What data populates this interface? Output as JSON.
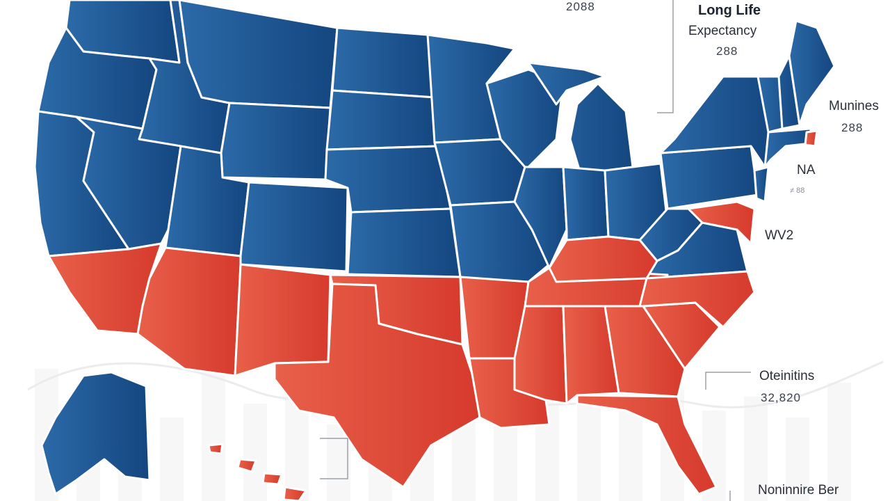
{
  "colors": {
    "high": "#1f5a96",
    "low": "#e24a38",
    "border": "#ffffff",
    "legend_bars": "#f1f1f1"
  },
  "labels": {
    "top_number": "2088",
    "title_line1": "Long Life",
    "title_line2": "Expectancy",
    "title_value": "288",
    "northeast_name": "Munines",
    "northeast_value": "288",
    "na_label": "NA",
    "small_note": "≠ 88",
    "wv_label": "WV2",
    "southeast_name": "Oteinitins",
    "southeast_value": "32,820",
    "bottom_label": "Noninnire Ber"
  },
  "regions": {
    "high_expectancy": [
      "Washington",
      "Oregon",
      "Idaho",
      "Montana",
      "Wyoming",
      "Nevada",
      "Utah",
      "Colorado",
      "North Dakota",
      "South Dakota",
      "Nebraska",
      "Kansas",
      "Minnesota",
      "Iowa",
      "Missouri",
      "Wisconsin",
      "Michigan",
      "Illinois",
      "Indiana",
      "Ohio",
      "Pennsylvania",
      "New York",
      "Vermont",
      "New Hampshire",
      "Maine",
      "Massachusetts",
      "Connecticut",
      "New Jersey",
      "West Virginia",
      "Virginia",
      "Alaska",
      "Northern California"
    ],
    "low_expectancy": [
      "Southern California",
      "Arizona",
      "New Mexico",
      "Texas",
      "Oklahoma",
      "Arkansas",
      "Louisiana",
      "Mississippi",
      "Alabama",
      "Georgia",
      "Florida",
      "Tennessee",
      "Kentucky",
      "North Carolina",
      "South Carolina",
      "Maryland",
      "Delaware",
      "Rhode Island",
      "Hawaii"
    ]
  }
}
